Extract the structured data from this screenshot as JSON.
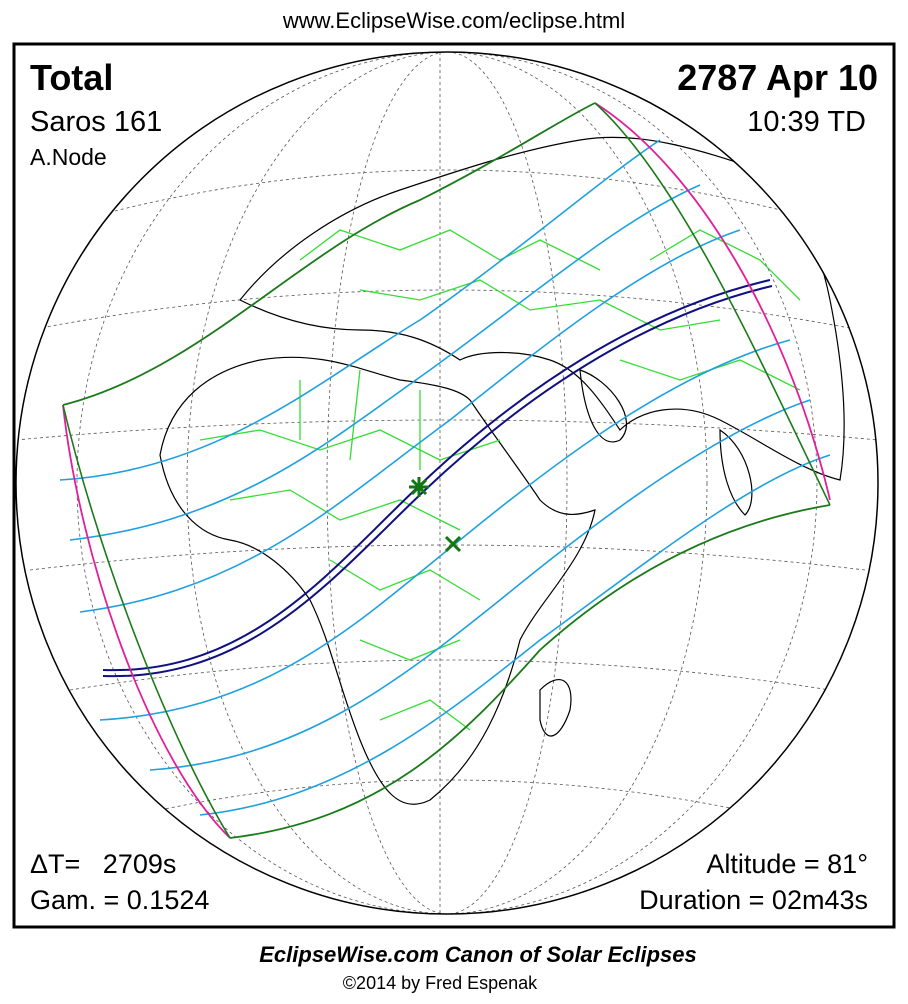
{
  "header": {
    "url": "www.EclipseWise.com/eclipse.html"
  },
  "panel": {
    "eclipse_type": "Total",
    "date": "2787 Apr 10",
    "saros": "Saros 161",
    "time": "10:39 TD",
    "node": "A.Node",
    "delta_t": "ΔT=   2709s",
    "gamma": "Gam. = 0.1524",
    "altitude": "Altitude = 81°",
    "duration": "Duration = 02m43s"
  },
  "footer": {
    "title": "EclipseWise.com Canon of Solar Eclipses",
    "copyright": "©2014 by Fred Espenak"
  }
}
